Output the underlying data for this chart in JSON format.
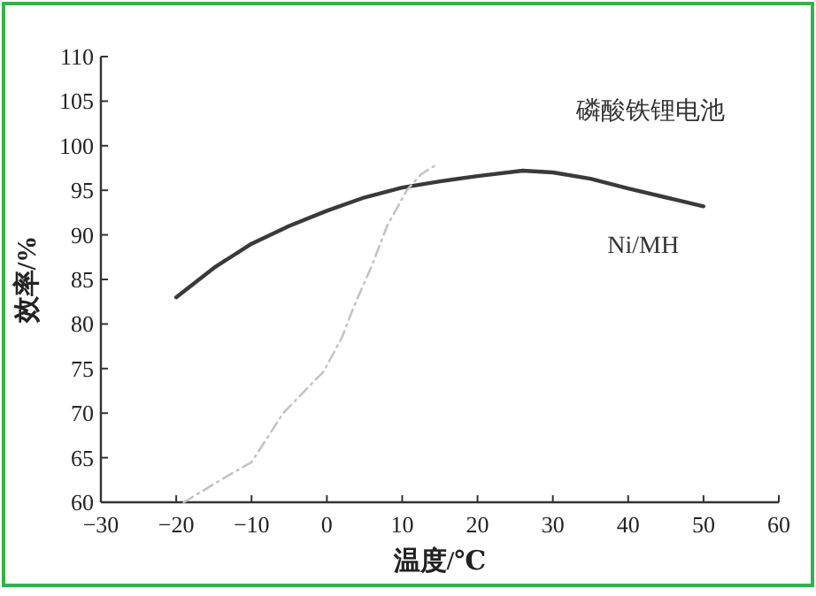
{
  "chart_data": {
    "type": "line",
    "xlabel": "温度/℃",
    "ylabel": "效率/%",
    "xlim": [
      -30,
      60
    ],
    "xticks": [
      -30,
      -20,
      -10,
      0,
      10,
      20,
      30,
      40,
      50,
      60
    ],
    "ylim": [
      60,
      110
    ],
    "yticks": [
      60,
      65,
      70,
      75,
      80,
      85,
      90,
      95,
      100,
      105,
      110
    ],
    "grid": false,
    "series": [
      {
        "color": "#3a3a3a",
        "line_style": "solid",
        "x": [
          -20,
          -15,
          -10,
          -5,
          0,
          5,
          10,
          15,
          20,
          26,
          30,
          35,
          40,
          45,
          50
        ],
        "values": [
          83,
          86.3,
          89,
          91,
          92.7,
          94.2,
          95.3,
          96,
          96.6,
          97.2,
          97,
          96.3,
          95.2,
          94.2,
          93.2
        ]
      },
      {
        "color": "#c4c4c4",
        "line_style": "dashed",
        "x": [
          -19,
          -13.5,
          -10,
          -5.8,
          -0.4,
          2,
          3.6,
          6,
          8,
          10.6,
          12.5,
          14.6
        ],
        "values": [
          60,
          62.8,
          64.5,
          70,
          74.7,
          78.5,
          82,
          86.6,
          91,
          95,
          96.8,
          97.9
        ]
      }
    ],
    "annotations": [
      "磷酸铁锂电池",
      "Ni/MH"
    ]
  }
}
